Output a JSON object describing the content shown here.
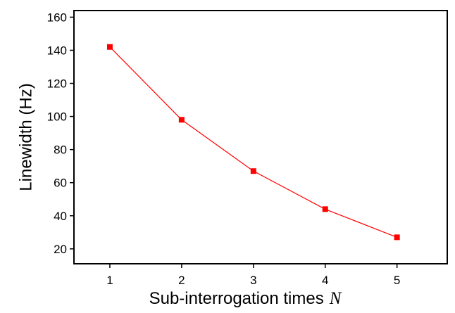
{
  "chart_data": {
    "type": "line",
    "title": "",
    "xlabel": "Sub-interrogation times",
    "xlabel_var": "N",
    "ylabel": "Linewidth (Hz)",
    "x": [
      1,
      2,
      3,
      4,
      5
    ],
    "series": [
      {
        "values": [
          142,
          98,
          67,
          44,
          27
        ],
        "color": "#ff0000",
        "marker": "square"
      }
    ],
    "xlim": [
      0.5,
      5.7
    ],
    "ylim": [
      11,
      164
    ],
    "xticks": [
      1,
      2,
      3,
      4,
      5
    ],
    "yticks": [
      20,
      40,
      60,
      80,
      100,
      120,
      140,
      160
    ],
    "grid": false,
    "legend": "none"
  }
}
